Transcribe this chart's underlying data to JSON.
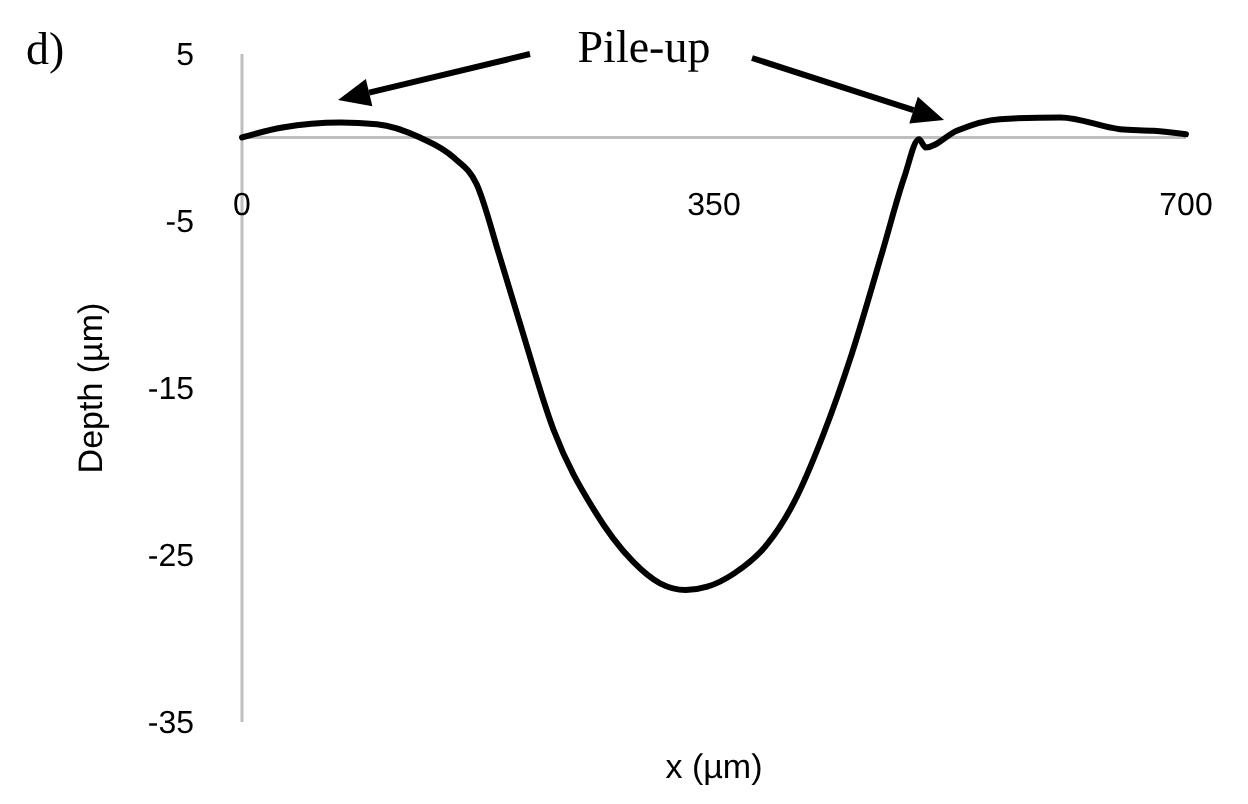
{
  "chart_data": {
    "type": "line",
    "title": "d)",
    "xlabel": "x (µm)",
    "ylabel": "Depth (µm)",
    "annotations": [
      "Pile-up"
    ],
    "x": [
      0,
      30,
      73,
      100,
      132,
      157,
      174,
      191,
      206,
      231,
      261,
      290,
      310,
      329,
      345,
      365,
      389,
      409,
      431,
      452,
      475,
      491,
      502,
      507,
      530,
      562,
      607,
      651,
      676,
      700
    ],
    "series": [
      {
        "color": "#000000",
        "values": [
          0,
          0.6,
          0.9,
          0.8,
          0,
          -1.2,
          -2.8,
          -7.1,
          -11.1,
          -17.5,
          -22.3,
          -25.4,
          -26.7,
          -27.1,
          -26.9,
          -26.1,
          -24.4,
          -21.9,
          -17.8,
          -13,
          -6.8,
          -2.4,
          -0.1,
          -0.6,
          0.4,
          1.1,
          1.2,
          0.5,
          0.4,
          0.2
        ]
      }
    ],
    "xlim": [
      0,
      700
    ],
    "xticks": [
      0,
      350,
      700
    ],
    "ylim": [
      -35,
      5
    ],
    "yticks": [
      5,
      -5,
      -15,
      -25,
      -35
    ]
  }
}
